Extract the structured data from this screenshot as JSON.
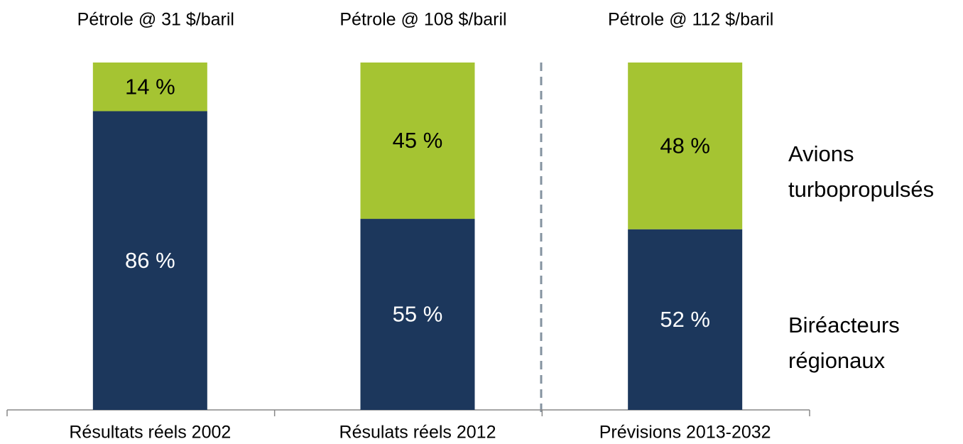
{
  "chart_data": {
    "type": "stacked_bar",
    "annotations": [
      "Pétrole @ 31 $/baril",
      "Pétrole @ 108 $/baril",
      "Pétrole @ 112 $/baril"
    ],
    "categories": [
      "Résultats réels 2002",
      "Résulats réels 2012",
      "Prévisions 2013-2032"
    ],
    "series": [
      {
        "name": "Biréacteurs régionaux",
        "color": "#1c375c",
        "values": [
          86,
          55,
          52
        ],
        "value_labels": [
          "86 %",
          "55 %",
          "52 %"
        ]
      },
      {
        "name": "Avions turbopropulsés",
        "color": "#a5c432",
        "values": [
          14,
          45,
          48
        ],
        "value_labels": [
          "14 %",
          "45 %",
          "48 %"
        ]
      }
    ],
    "ylim": [
      0,
      100
    ]
  }
}
